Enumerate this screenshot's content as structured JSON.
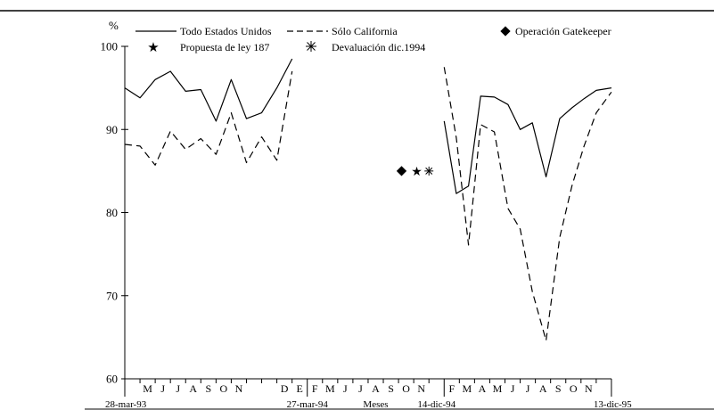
{
  "chart_data": {
    "type": "line",
    "ylabel": "%",
    "xlabel": "Meses",
    "ylim": [
      60,
      100
    ],
    "yticks": [
      60,
      70,
      80,
      90,
      100
    ],
    "x_month_ticks": [
      "M",
      "M",
      "J",
      "J",
      "A",
      "S",
      "O",
      "N",
      "D",
      "E",
      "F",
      "M",
      "M",
      "J",
      "J",
      "A",
      "S",
      "O",
      "N",
      "D",
      "E",
      "F",
      "M",
      "A",
      "M",
      "J",
      "J",
      "A",
      "S",
      "O",
      "N"
    ],
    "x_labels_visible": [
      "M",
      "J",
      "J",
      "A",
      "S",
      "O",
      "N",
      "D",
      "E",
      "F",
      "M",
      "J",
      "J",
      "A",
      "S",
      "O",
      "N",
      "F",
      "M",
      "A",
      "M",
      "J",
      "J",
      "A",
      "S",
      "O",
      "N"
    ],
    "date_labels": [
      {
        "text": "28-mar-93",
        "x": 0
      },
      {
        "text": "27-mar-94",
        "x": 12
      },
      {
        "text": "Meses",
        "x": 16.5
      },
      {
        "text": "14-dic-94",
        "x": 20.5
      },
      {
        "text": "13-dic-95",
        "x": 32
      }
    ],
    "legend": [
      {
        "label": "Todo Estados Unidos",
        "symbol": "solid-line"
      },
      {
        "label": "Sólo California",
        "symbol": "dashed-line"
      },
      {
        "label": "Operación Gatekeeper",
        "symbol": "diamond"
      },
      {
        "label": "Propuesta de ley 187",
        "symbol": "star"
      },
      {
        "label": "Devaluación dic.1994",
        "symbol": "asterisk"
      }
    ],
    "series": [
      {
        "name": "Todo Estados Unidos",
        "style": "solid",
        "segments": [
          {
            "x": [
              0,
              1,
              2,
              3,
              4,
              5,
              6,
              7,
              8,
              9,
              10,
              11
            ],
            "y": [
              95,
              93.8,
              96,
              97,
              94.6,
              94.8,
              91,
              96,
              91.3,
              92,
              95,
              98.5
            ]
          },
          {
            "x": [
              21,
              21.8,
              22.6,
              23.4,
              24.3,
              25.2,
              26,
              26.8,
              27.7,
              28.6,
              29.4,
              30.2,
              31,
              32
            ],
            "y": [
              91,
              82.3,
              83.2,
              94,
              93.9,
              93,
              90,
              90.8,
              84.3,
              91.3,
              92.6,
              93.7,
              94.7,
              95
            ]
          }
        ]
      },
      {
        "name": "Sólo California",
        "style": "dashed",
        "segments": [
          {
            "x": [
              0,
              1,
              2,
              3,
              4,
              5,
              6,
              7,
              8,
              9,
              10,
              11
            ],
            "y": [
              88.2,
              88,
              85.7,
              89.8,
              87.6,
              88.9,
              87,
              92,
              86,
              89.1,
              86.3,
              97
            ]
          },
          {
            "x": [
              21,
              21.8,
              22.6,
              23.4,
              24.3,
              25.2,
              26,
              26.8,
              27.7,
              28.6,
              29.4,
              30.2,
              31,
              32
            ],
            "y": [
              97.5,
              89,
              76.1,
              90.6,
              89.7,
              80.5,
              78,
              70.5,
              64.6,
              77,
              83.2,
              88,
              92,
              94.5
            ]
          }
        ]
      }
    ],
    "markers": [
      {
        "name": "Operación Gatekeeper",
        "symbol": "diamond",
        "x": 18.2,
        "y": 85
      },
      {
        "name": "Propuesta de ley 187",
        "symbol": "star",
        "x": 19.2,
        "y": 85
      },
      {
        "name": "Devaluación dic.1994",
        "symbol": "asterisk",
        "x": 20,
        "y": 85
      }
    ]
  }
}
